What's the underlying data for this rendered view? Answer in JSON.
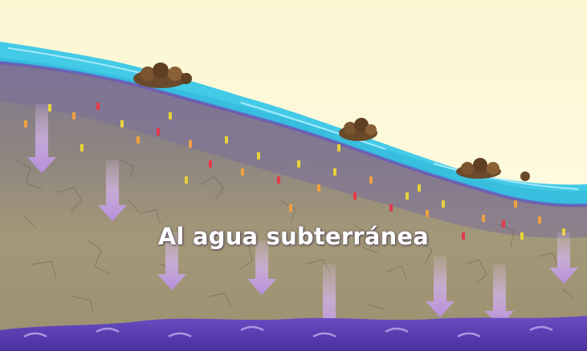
{
  "caption": "Al agua subterránea",
  "colors": {
    "sky": "#fbf8d8",
    "surface_water": "#2fc4e8",
    "water_line": "#6b4fb8",
    "soil_upper": "#8a7f8c",
    "soil_lower": "#a49a74",
    "groundwater": "#5b3fb3",
    "arrow": "#c7a2e6"
  },
  "icons": [
    "shrub-icon",
    "down-arrow-icon",
    "contaminant-particle-icon",
    "groundwater-wave-icon"
  ]
}
